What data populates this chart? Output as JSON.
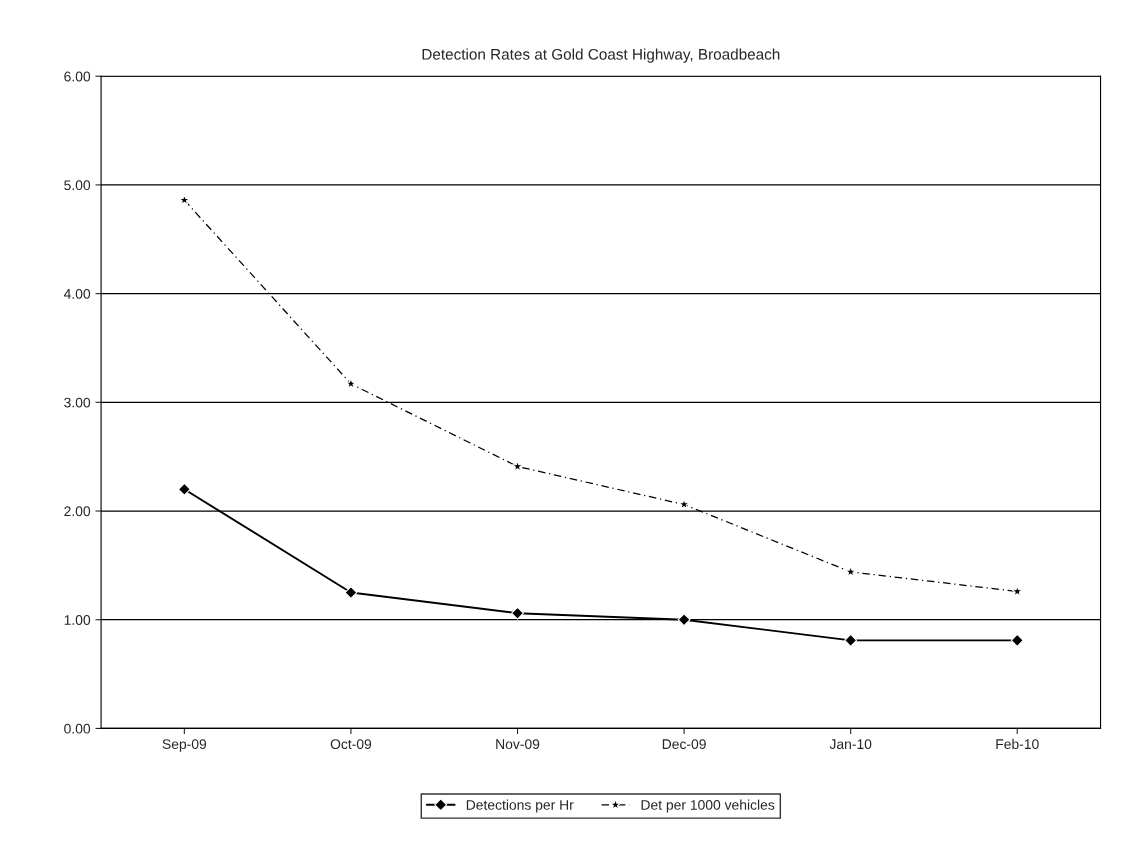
{
  "chart_data": {
    "type": "line",
    "title": "Detection Rates at Gold Coast Highway, Broadbeach",
    "categories": [
      "Sep-09",
      "Oct-09",
      "Nov-09",
      "Dec-09",
      "Jan-10",
      "Feb-10"
    ],
    "series": [
      {
        "name": "Detections per Hr",
        "color": "#000000",
        "marker": "diamond",
        "line_style": "solid",
        "values": [
          2.2,
          1.25,
          1.06,
          1.0,
          0.81,
          0.81
        ]
      },
      {
        "name": "Det per 1000 vehicles",
        "color": "#000000",
        "marker": "star",
        "line_style": "dashed",
        "values": [
          4.86,
          3.17,
          2.41,
          2.06,
          1.44,
          1.26
        ]
      }
    ],
    "ylim": [
      0,
      6
    ],
    "yticks": [
      {
        "value": 0,
        "label": "0.00"
      },
      {
        "value": 1,
        "label": "1.00"
      },
      {
        "value": 2,
        "label": "2.00"
      },
      {
        "value": 3,
        "label": "3.00"
      },
      {
        "value": 4,
        "label": "4.00"
      },
      {
        "value": 5,
        "label": "5.00"
      },
      {
        "value": 6,
        "label": "6.00"
      }
    ],
    "grid": "y",
    "legend": "bottom"
  }
}
